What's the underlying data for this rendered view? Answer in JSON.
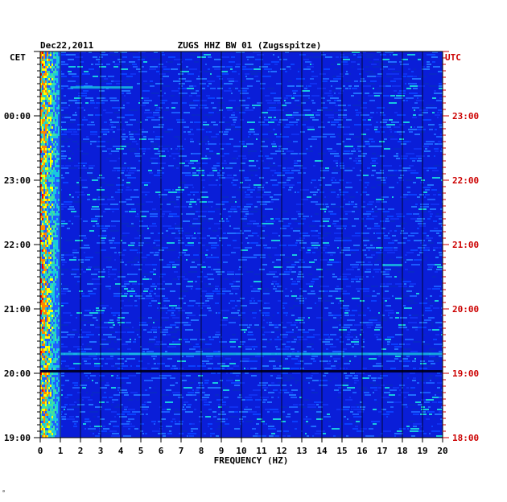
{
  "header": {
    "date": "Dec22,2011",
    "station": "ZUGS HHZ BW 01 (Zugsspitze)",
    "left_zone": "CET",
    "right_zone": "UTC"
  },
  "footer": {
    "mark": "ᵃ"
  },
  "colors": {
    "background_blue": "#0a1ed8",
    "noise_strong": "#ff0000",
    "noise_mid": "#ffff00",
    "noise_low": "#18c8e0",
    "right_labels": "#cc0000",
    "left_labels": "#000000"
  },
  "chart_data": {
    "type": "heatmap",
    "title": "ZUGS HHZ BW 01 (Zugsspitze)",
    "subtitle": "Dec22,2011",
    "xlabel": "FREQUENCY (HZ)",
    "xlim": [
      0,
      20
    ],
    "x_ticks": [
      "0",
      "1",
      "2",
      "3",
      "4",
      "5",
      "6",
      "7",
      "8",
      "9",
      "10",
      "11",
      "12",
      "13",
      "14",
      "15",
      "16",
      "17",
      "18",
      "19",
      "20"
    ],
    "y_left_label": "CET",
    "y_right_label": "UTC",
    "y_left_ticks": [
      "00:00",
      "23:00",
      "22:00",
      "21:00",
      "20:00",
      "19:00"
    ],
    "y_right_ticks": [
      "23:00",
      "22:00",
      "21:00",
      "20:00",
      "19:00",
      "18:00"
    ],
    "grid": true,
    "high_energy_band_hz": [
      0,
      1
    ],
    "notable_horizontal_line_hours_from_top": 5.3
  }
}
